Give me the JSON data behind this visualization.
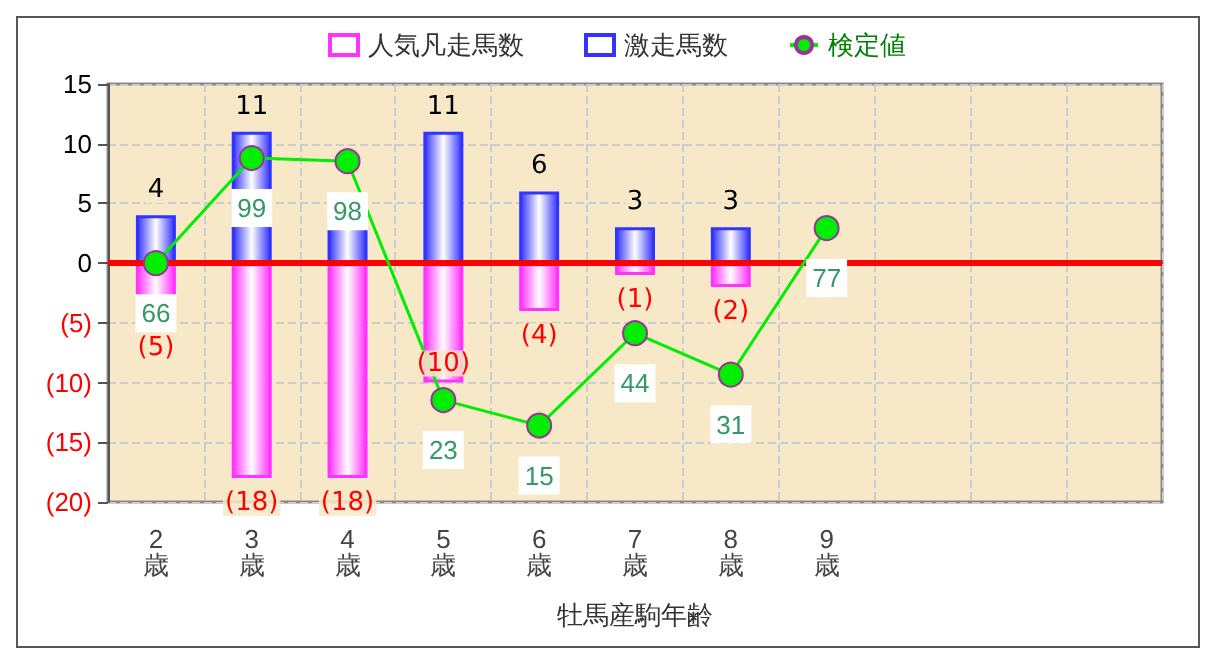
{
  "chart_data": {
    "type": "bar",
    "stacked": true,
    "xlabel": "牡馬産駒年齢",
    "categories": [
      "2歳",
      "3歳",
      "4歳",
      "5歳",
      "6歳",
      "7歳",
      "8歳",
      "9歳",
      null,
      null,
      null
    ],
    "series": [
      {
        "name": "人気凡走馬数",
        "color": "#ff33ff",
        "values": [
          -5,
          -18,
          -18,
          -10,
          -4,
          -1,
          -2,
          null,
          null,
          null,
          null
        ],
        "value_labels": [
          "(5)",
          "(18)",
          "(18)",
          "(10)",
          "(4)",
          "(1)",
          "(2)",
          null,
          null,
          null,
          null
        ]
      },
      {
        "name": "激走馬数",
        "color": "#3333ff",
        "values": [
          4,
          11,
          4,
          11,
          6,
          3,
          3,
          null,
          null,
          null,
          null
        ],
        "value_labels": [
          "4",
          "11",
          null,
          "11",
          "6",
          "3",
          "3",
          null,
          null,
          null,
          null
        ]
      },
      {
        "name": "検定値",
        "type": "line",
        "axis": "y2",
        "color": "#00ee00",
        "values": [
          66,
          99,
          98,
          23,
          15,
          44,
          31,
          77,
          null,
          null,
          null
        ],
        "value_labels": [
          "66",
          "99",
          "98",
          "23",
          "15",
          "44",
          "31",
          "77",
          null,
          null,
          null
        ]
      }
    ],
    "ylim": [
      -20,
      15
    ],
    "yticks": [
      {
        "value": -20,
        "label": "(20)"
      },
      {
        "value": -15,
        "label": "(15)"
      },
      {
        "value": -10,
        "label": "(10)"
      },
      {
        "value": -5,
        "label": "(5)"
      },
      0,
      5,
      10,
      15
    ],
    "y2lim": [
      -9,
      122.25
    ],
    "ref_lines": [
      {
        "axis": "y",
        "value": 0,
        "color": "#ff0000"
      }
    ],
    "grid": true,
    "legend": "top",
    "marker": "circle"
  }
}
